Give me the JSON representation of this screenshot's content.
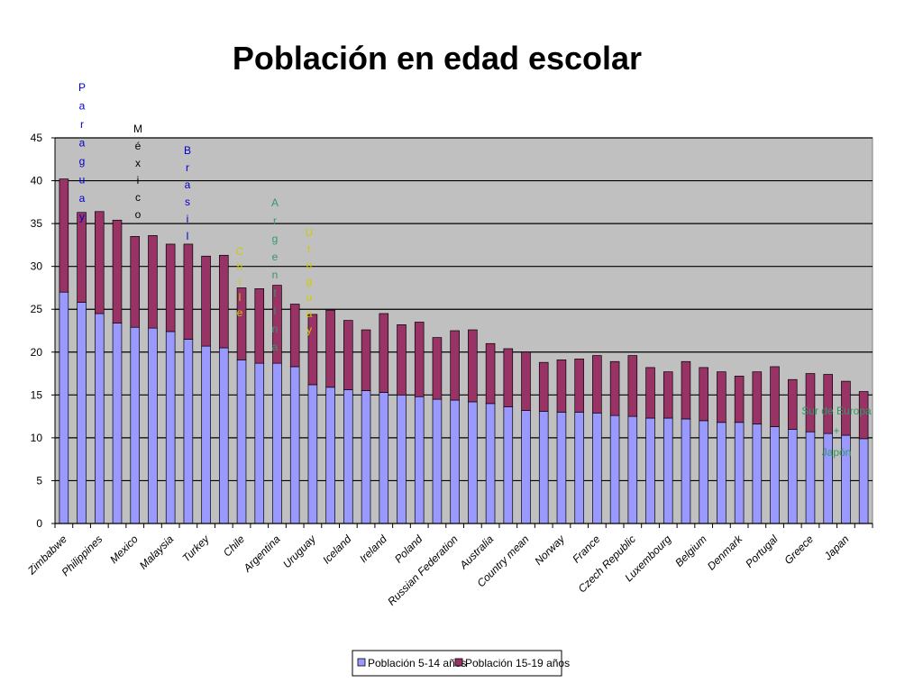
{
  "chart_data": {
    "type": "bar",
    "stacked": true,
    "title": "Población en edad escolar",
    "xlabel": "",
    "ylabel": "",
    "ylim": [
      0,
      45
    ],
    "yticks": [
      0,
      5,
      10,
      15,
      20,
      25,
      30,
      35,
      40,
      45
    ],
    "grid": true,
    "legend_position": "bottom",
    "colors": {
      "series1": "#9999ff",
      "series2": "#993366",
      "plot_bg": "#c0c0c0"
    },
    "categories": [
      "Zimbabwe",
      "",
      "Philippines",
      "",
      "Mexico",
      "",
      "Malaysia",
      "",
      "Turkey",
      "",
      "Chile",
      "",
      "Argentina",
      "",
      "Uruguay",
      "",
      "Iceland",
      "",
      "Ireland",
      "",
      "Poland",
      "",
      "Russian Federation",
      "",
      "Australia",
      "",
      "Country mean",
      "",
      "Norway",
      "",
      "France",
      "",
      "Czech Republic",
      "",
      "Luxembourg",
      "",
      "Belgium",
      "",
      "Denmark",
      "",
      "Portugal",
      "",
      "Greece",
      "",
      "Japan",
      ""
    ],
    "series": [
      {
        "name": "Población 5-14 años",
        "values": [
          27.0,
          25.8,
          24.5,
          23.4,
          22.9,
          22.8,
          22.4,
          21.5,
          20.7,
          20.5,
          19.1,
          18.7,
          18.7,
          18.3,
          16.2,
          15.9,
          15.6,
          15.5,
          15.3,
          15.0,
          14.8,
          14.5,
          14.4,
          14.2,
          14.0,
          13.6,
          13.2,
          13.1,
          13.0,
          13.0,
          12.9,
          12.6,
          12.5,
          12.3,
          12.3,
          12.2,
          12.0,
          11.8,
          11.8,
          11.6,
          11.3,
          11.0,
          10.7,
          10.5,
          10.3,
          9.9
        ]
      },
      {
        "name": "Población 15-19 años",
        "values": [
          13.2,
          10.5,
          11.9,
          12.0,
          10.6,
          10.8,
          10.2,
          11.1,
          10.5,
          10.8,
          8.4,
          8.7,
          9.1,
          7.3,
          8.2,
          9.0,
          8.1,
          7.1,
          9.2,
          8.2,
          8.7,
          7.2,
          8.1,
          8.4,
          7.0,
          6.8,
          6.8,
          5.7,
          6.1,
          6.2,
          6.7,
          6.3,
          7.1,
          5.9,
          5.4,
          6.7,
          6.2,
          5.9,
          5.4,
          6.1,
          7.0,
          5.8,
          6.8,
          6.9,
          6.3,
          5.5
        ]
      }
    ],
    "annotations": [
      {
        "text": "Paraguay",
        "color": "#0000cc"
      },
      {
        "text": "México",
        "color": "#000000"
      },
      {
        "text": "Brasil",
        "color": "#0000cc"
      },
      {
        "text": "Chile",
        "color": "#cccc00"
      },
      {
        "text": "Argentina",
        "color": "#339966"
      },
      {
        "text": "Uruguay",
        "color": "#cccc00"
      },
      {
        "text": "Sur de Europa",
        "color": "#339966"
      },
      {
        "text": "+",
        "color": "#339966"
      },
      {
        "text": "Japón",
        "color": "#339966"
      }
    ]
  }
}
